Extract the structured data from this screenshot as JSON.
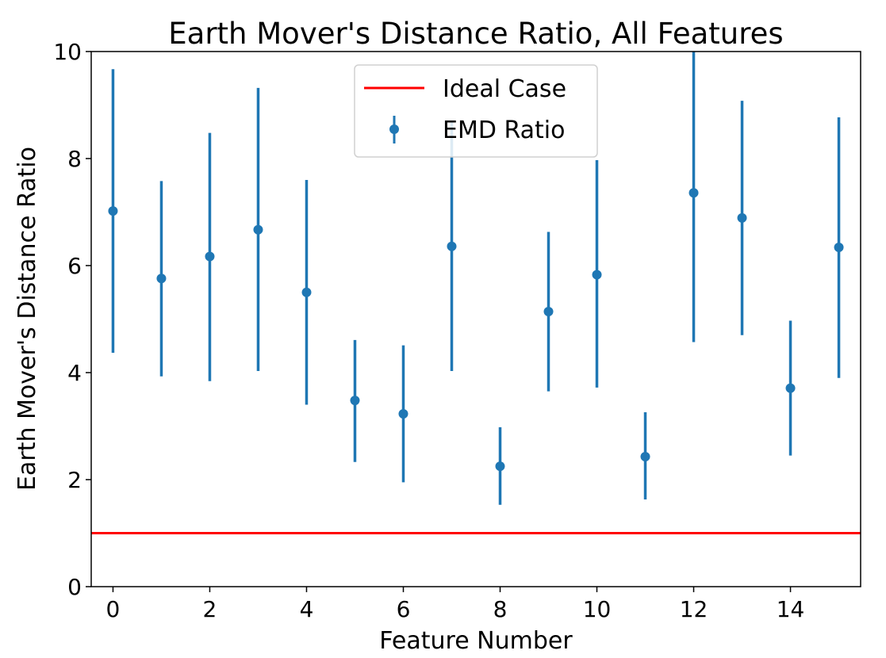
{
  "chart_data": {
    "type": "scatter",
    "title": "Earth Mover's Distance Ratio, All Features",
    "xlabel": "Feature Number",
    "ylabel": "Earth Mover's Distance Ratio",
    "xlim": [
      -0.45,
      15.45
    ],
    "ylim": [
      0,
      10
    ],
    "xticks": [
      0,
      2,
      4,
      6,
      8,
      10,
      12,
      14
    ],
    "yticks": [
      0,
      2,
      4,
      6,
      8,
      10
    ],
    "grid": false,
    "legend_position": "top-center",
    "series": [
      {
        "name": "Ideal Case",
        "kind": "hline",
        "y": 1,
        "color": "#ff0000"
      },
      {
        "name": "EMD Ratio",
        "kind": "errorbar",
        "color": "#1f77b4",
        "x": [
          0,
          1,
          2,
          3,
          4,
          5,
          6,
          7,
          8,
          9,
          10,
          11,
          12,
          13,
          14,
          15
        ],
        "values": [
          7.02,
          5.76,
          6.17,
          6.67,
          5.5,
          3.48,
          3.23,
          6.36,
          2.25,
          5.14,
          5.83,
          2.43,
          7.36,
          6.89,
          3.71,
          6.34
        ],
        "lower": [
          4.37,
          3.93,
          3.84,
          4.03,
          3.4,
          2.33,
          1.95,
          4.03,
          1.53,
          3.65,
          3.72,
          1.63,
          4.57,
          4.7,
          2.45,
          3.9
        ],
        "upper": [
          9.67,
          7.58,
          8.48,
          9.32,
          7.6,
          4.61,
          4.51,
          8.7,
          2.98,
          6.63,
          7.97,
          3.26,
          10.0,
          9.08,
          4.97,
          8.77
        ]
      }
    ]
  }
}
